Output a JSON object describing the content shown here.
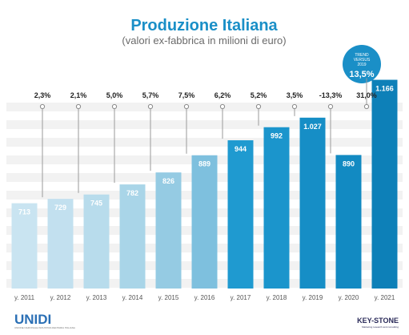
{
  "title": "Produzione Italiana",
  "subtitle": "(valori ex-fabbrica in milioni di euro)",
  "badge": {
    "line1": "TREND",
    "line2": "VERSUS",
    "line3": "2019",
    "value": "13,5%",
    "color": "#1a8fc7"
  },
  "logos": {
    "left": "UNIDI",
    "left_sub": "UNIONE NAZIONALE INDUSTRIA DENTARIA ITALIANA",
    "right": "KEY-STONE",
    "right_sub": "Marketing research and consulting"
  },
  "chart_data": {
    "type": "bar",
    "categories": [
      "y. 2011",
      "y. 2012",
      "y. 2013",
      "y. 2014",
      "y. 2015",
      "y. 2016",
      "y. 2017",
      "y. 2018",
      "y. 2019",
      "y. 2020",
      "y. 2021"
    ],
    "values": [
      713,
      729,
      745,
      782,
      826,
      889,
      944,
      992,
      1027,
      890,
      1166
    ],
    "value_labels": [
      "713",
      "729",
      "745",
      "782",
      "826",
      "889",
      "944",
      "992",
      "1.027",
      "890",
      "1.166"
    ],
    "growth_labels": [
      "2,3%",
      "2,1%",
      "5,0%",
      "5,7%",
      "7,5%",
      "6,2%",
      "5,2%",
      "3,5%",
      "-13,3%",
      "31,0%"
    ],
    "ylim": [
      400,
      1200
    ],
    "grid": true,
    "colors": [
      "#c9e4f1",
      "#c2e0ef",
      "#b8dcec",
      "#a9d5e8",
      "#95cbe3",
      "#7ec0de",
      "#1f9ad0",
      "#1b95cc",
      "#168ec6",
      "#128ac2",
      "#0d80b8"
    ],
    "value_text_colors": [
      "#ffffff",
      "#ffffff",
      "#ffffff",
      "#ffffff",
      "#ffffff",
      "#ffffff",
      "#ffffff",
      "#ffffff",
      "#ffffff",
      "#ffffff",
      "#ffffff"
    ]
  }
}
